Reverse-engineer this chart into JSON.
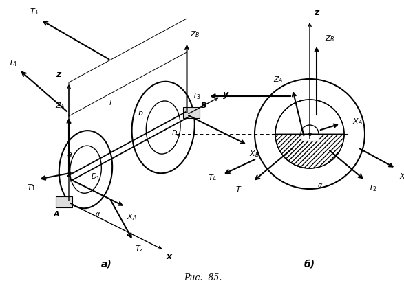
{
  "fig_width": 5.87,
  "fig_height": 4.12,
  "dpi": 100,
  "bg_color": "#ffffff",
  "caption": "Рис.  85.",
  "label_a": "а)",
  "label_b": "б)"
}
